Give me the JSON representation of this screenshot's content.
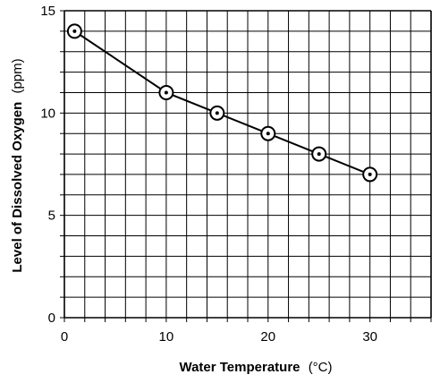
{
  "chart_data": {
    "type": "line",
    "title": "",
    "xlabel": "Water Temperature",
    "xlabel_unit": "(°C)",
    "ylabel": "Level of Dissolved Oxygen",
    "ylabel_unit": "(ppm)",
    "xlim": [
      0,
      36
    ],
    "ylim": [
      0,
      15
    ],
    "x_ticks": [
      0,
      10,
      20,
      30
    ],
    "y_ticks": [
      0,
      5,
      10,
      15
    ],
    "x_minor_step": 2,
    "y_minor_step": 1,
    "grid": true,
    "legend": "none",
    "marker": "circle-dot",
    "line_color": "#000000",
    "grid_color": "#000000",
    "series": [
      {
        "x": [
          1,
          10,
          15,
          20,
          25,
          30
        ],
        "y": [
          14,
          11,
          10,
          9,
          8,
          7
        ]
      }
    ]
  }
}
